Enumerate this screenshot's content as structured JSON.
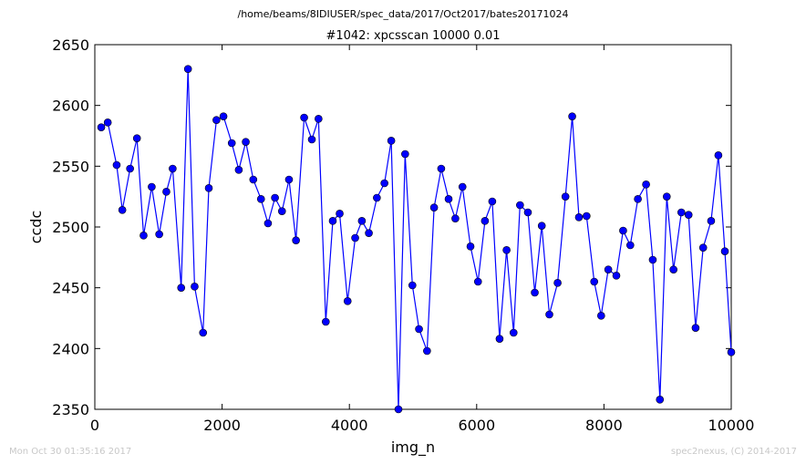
{
  "suptitle": "/home/beams/8IDIUSER/spec_data/2017/Oct2017/bates20171024",
  "footer": {
    "timestamp": "Mon Oct 30 01:35:16 2017",
    "credit": "spec2nexus, (C) 2014-2017"
  },
  "chart_data": {
    "type": "line",
    "title": "#1042: xpcsscan 10000 0.01",
    "xlabel": "img_n",
    "ylabel": "ccdc",
    "xlim": [
      0,
      10000
    ],
    "ylim": [
      2350,
      2650
    ],
    "xticks": [
      0,
      2000,
      4000,
      6000,
      8000,
      10000
    ],
    "yticks": [
      2350,
      2400,
      2450,
      2500,
      2550,
      2600,
      2650
    ],
    "grid": false,
    "series": [
      {
        "color": "#0000ff",
        "marker": "circle",
        "x": [
          101,
          203,
          343,
          432,
          554,
          662,
          766,
          894,
          1012,
          1124,
          1223,
          1357,
          1464,
          1568,
          1701,
          1791,
          1911,
          2021,
          2152,
          2262,
          2372,
          2490,
          2611,
          2721,
          2831,
          2941,
          3051,
          3161,
          3289,
          3410,
          3515,
          3629,
          3739,
          3847,
          3972,
          4091,
          4196,
          4306,
          4432,
          4551,
          4658,
          4771,
          4876,
          4990,
          5094,
          5220,
          5331,
          5443,
          5559,
          5665,
          5777,
          5903,
          6021,
          6130,
          6245,
          6360,
          6470,
          6580,
          6681,
          6805,
          6913,
          7023,
          7142,
          7272,
          7395,
          7501,
          7607,
          7727,
          7847,
          7956,
          8068,
          8195,
          8301,
          8414,
          8533,
          8662,
          8767,
          8879,
          8987,
          9093,
          9216,
          9330,
          9440,
          9559,
          9684,
          9798,
          9900,
          10000
        ],
        "y": [
          2582,
          2586,
          2551,
          2514,
          2548,
          2573,
          2493,
          2533,
          2494,
          2529,
          2548,
          2450,
          2630,
          2451,
          2413,
          2532,
          2588,
          2591,
          2569,
          2547,
          2570,
          2539,
          2523,
          2503,
          2524,
          2513,
          2539,
          2489,
          2590,
          2572,
          2589,
          2422,
          2505,
          2511,
          2439,
          2491,
          2505,
          2495,
          2524,
          2536,
          2571,
          2350,
          2560,
          2452,
          2416,
          2398,
          2516,
          2548,
          2523,
          2507,
          2533,
          2484,
          2455,
          2505,
          2521,
          2408,
          2481,
          2413,
          2518,
          2512,
          2446,
          2501,
          2428,
          2454,
          2525,
          2591,
          2508,
          2509,
          2455,
          2427,
          2465,
          2460,
          2497,
          2485,
          2523,
          2535,
          2473,
          2358,
          2525,
          2465,
          2512,
          2510,
          2417,
          2483,
          2505,
          2559,
          2480,
          2397
        ]
      }
    ]
  }
}
